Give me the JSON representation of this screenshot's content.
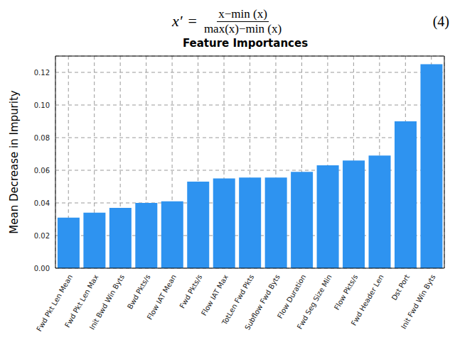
{
  "equation": {
    "lhs": "x′",
    "relation": "=",
    "numerator": "x−min (x)",
    "denominator": "max(x)−min (x)",
    "number": "(4)"
  },
  "chart_data": {
    "type": "bar",
    "title": "Feature Importances",
    "y_label": "Mean Decrease in Impurity",
    "categories": [
      "Fwd Pkt Len Mean",
      "Fwd Pkt Len Max",
      "Init Bwd Win Byts",
      "Bwd Pkts/s",
      "Flow IAT Mean",
      "Fwd Pkts/s",
      "Flow IAT Max",
      "TotLen Fwd Pkts",
      "Subflow Fwd Byts",
      "Flow Duration",
      "Fwd Seg Size Min",
      "Flow Pkts/s",
      "Fwd Header Len",
      "Dst Port",
      "Init Fwd Win Byts"
    ],
    "values": [
      0.031,
      0.034,
      0.037,
      0.04,
      0.041,
      0.053,
      0.055,
      0.0555,
      0.0555,
      0.059,
      0.063,
      0.066,
      0.069,
      0.09,
      0.125
    ],
    "color": "#2e93f0",
    "ylim": [
      0,
      0.13
    ],
    "yticks": [
      {
        "value": 0,
        "label": "0.00"
      },
      {
        "value": 0.02,
        "label": "0.02"
      },
      {
        "value": 0.04,
        "label": "0.04"
      },
      {
        "value": 0.06,
        "label": "0.06"
      },
      {
        "value": 0.08,
        "label": "0.08"
      },
      {
        "value": 0.1,
        "label": "0.10"
      },
      {
        "value": 0.12,
        "label": "0.12"
      }
    ],
    "grid": true
  }
}
